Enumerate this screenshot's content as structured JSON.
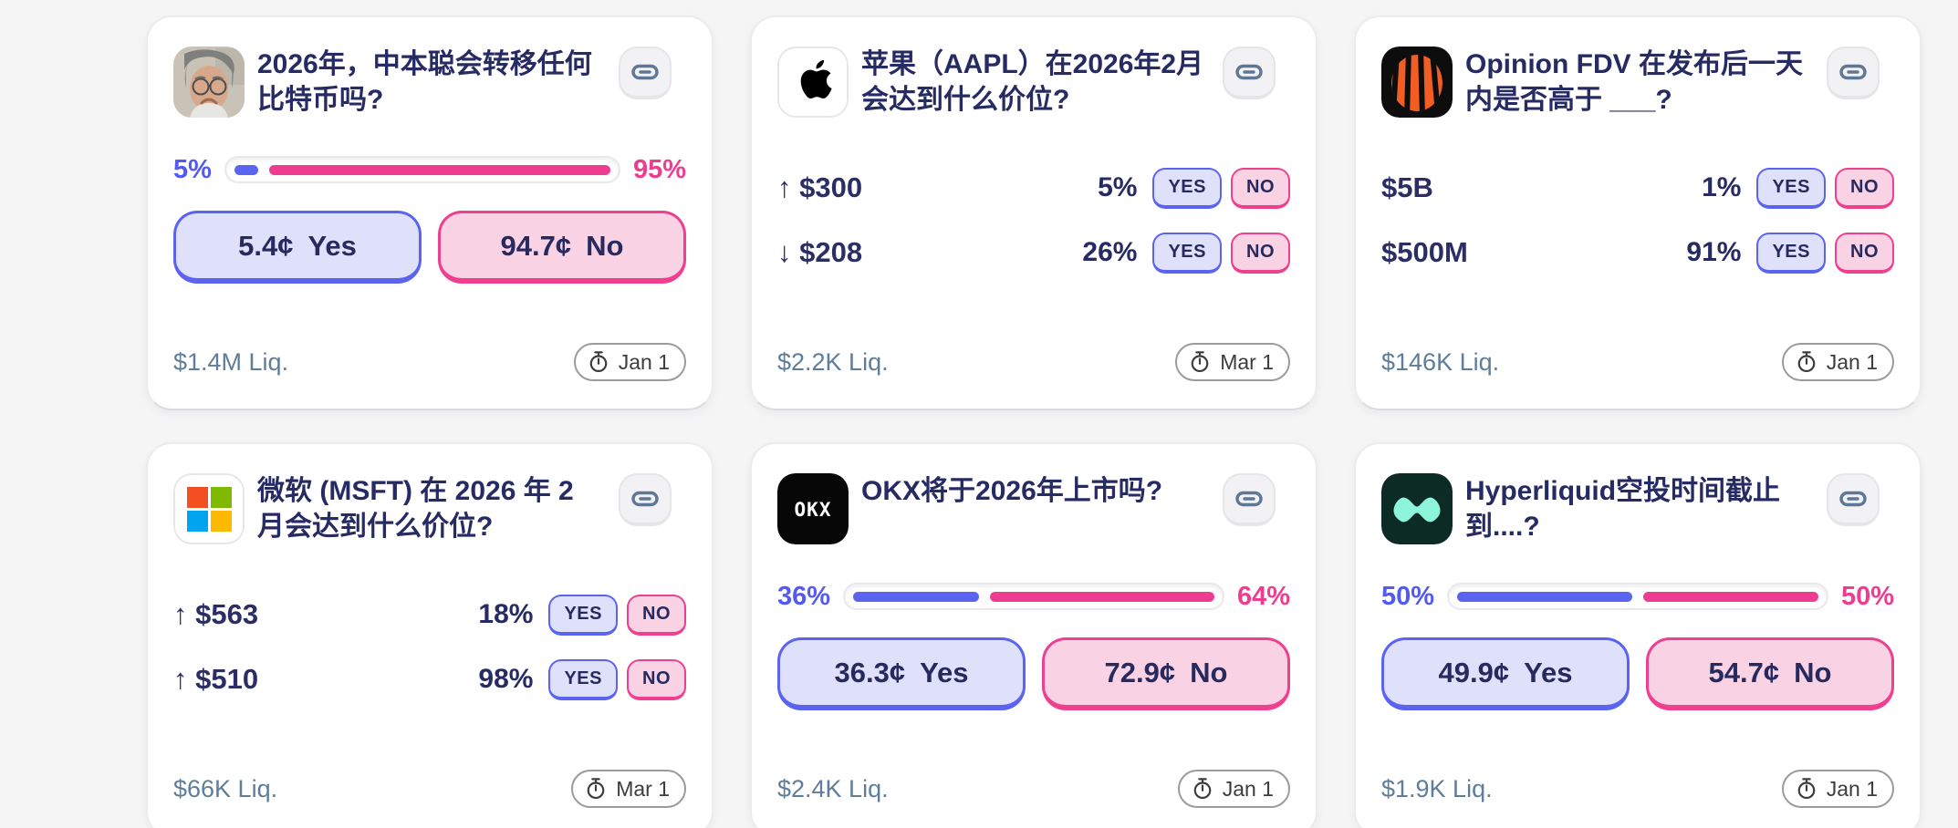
{
  "ui": {
    "yes_small": "YES",
    "no_small": "NO",
    "yes_word": "Yes",
    "no_word": "No"
  },
  "colors": {
    "background": "#f5f5f6",
    "navy_text": "#272b63",
    "yes_blue": "#5b63f1",
    "no_pink": "#ee3d90",
    "yes_fill": "#dfe0f9",
    "no_fill": "#f9d2e4",
    "liquidity_text": "#5e7d9a"
  },
  "cards": [
    {
      "kind": "binary",
      "icon": "nakamoto-avatar",
      "title": "2026年，中本聪会转移任何比特币吗?",
      "left_pct": "5%",
      "right_pct": "95%",
      "yes_ratio": 0.05,
      "yes_price": "5.4¢",
      "no_price": "94.7¢",
      "liquidity": "$1.4M Liq.",
      "deadline": "Jan 1"
    },
    {
      "kind": "multi",
      "icon": "apple-logo",
      "title": "苹果（AAPL）在2026年2月会达到什么价位?",
      "outcomes": [
        {
          "label": "↑ $300",
          "pct": "5%"
        },
        {
          "label": "↓ $208",
          "pct": "26%"
        }
      ],
      "liquidity": "$2.2K Liq.",
      "deadline": "Mar 1"
    },
    {
      "kind": "multi",
      "icon": "opinion-logo",
      "title": "Opinion FDV 在发布后一天内是否高于 ___?",
      "outcomes": [
        {
          "label": "$5B",
          "pct": "1%"
        },
        {
          "label": "$500M",
          "pct": "91%"
        }
      ],
      "liquidity": "$146K Liq.",
      "deadline": "Jan 1"
    },
    {
      "kind": "multi",
      "icon": "microsoft-logo",
      "title": "微软 (MSFT) 在 2026 年 2 月会达到什么价位?",
      "outcomes": [
        {
          "label": "↑ $563",
          "pct": "18%"
        },
        {
          "label": "↑ $510",
          "pct": "98%"
        }
      ],
      "liquidity": "$66K Liq.",
      "deadline": "Mar 1"
    },
    {
      "kind": "binary",
      "icon": "okx-logo",
      "title": "OKX将于2026年上市吗?",
      "left_pct": "36%",
      "right_pct": "64%",
      "yes_ratio": 0.36,
      "yes_price": "36.3¢",
      "no_price": "72.9¢",
      "liquidity": "$2.4K Liq.",
      "deadline": "Jan 1"
    },
    {
      "kind": "binary",
      "icon": "hyperliquid-logo",
      "title": "Hyperliquid空投时间截止到....?",
      "left_pct": "50%",
      "right_pct": "50%",
      "yes_ratio": 0.5,
      "yes_price": "49.9¢",
      "no_price": "54.7¢",
      "liquidity": "$1.9K Liq.",
      "deadline": "Jan 1"
    }
  ]
}
